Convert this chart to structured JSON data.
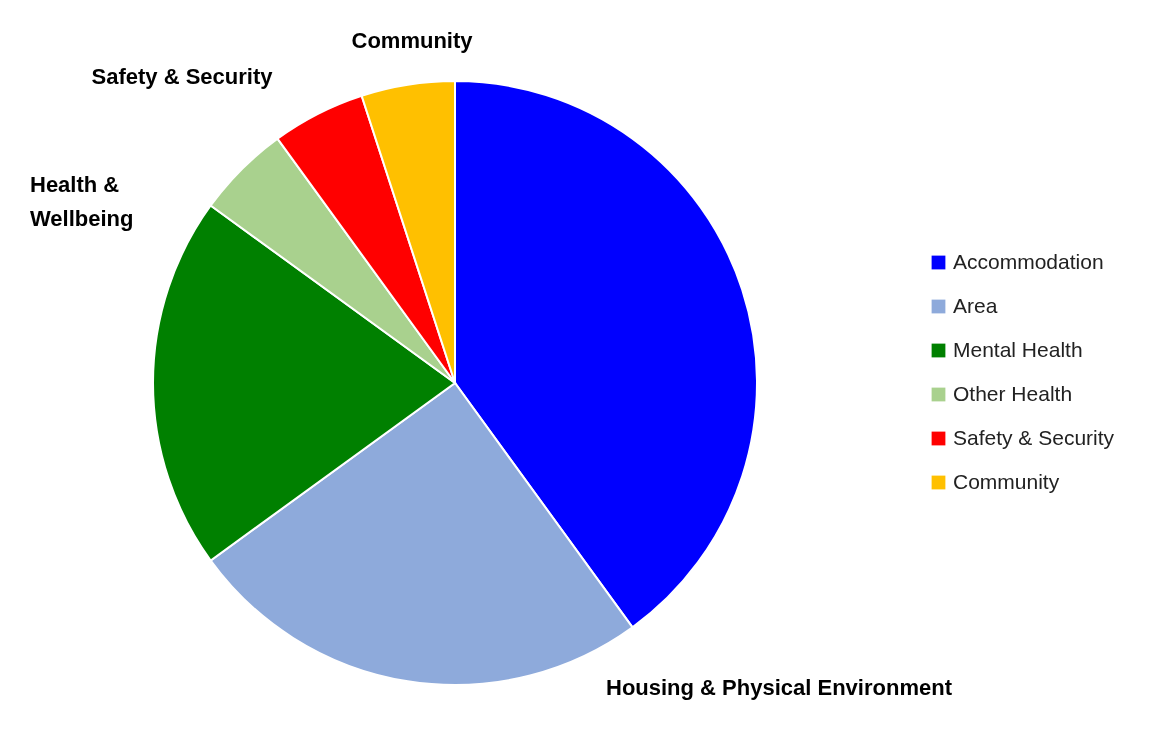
{
  "chart_data": {
    "type": "pie",
    "categories": [
      "Accommodation",
      "Area",
      "Mental Health",
      "Other Health",
      "Safety & Security",
      "Community"
    ],
    "values": [
      40,
      25,
      20,
      5,
      5,
      5
    ],
    "colors": [
      "#0000ff",
      "#8eaadb",
      "#008000",
      "#a9d18e",
      "#ff0000",
      "#ffc000"
    ],
    "legend": "right",
    "annotations": [
      "Community",
      "Safety & Security",
      "Health & Wellbeing",
      "Housing & Physical Environment"
    ]
  }
}
